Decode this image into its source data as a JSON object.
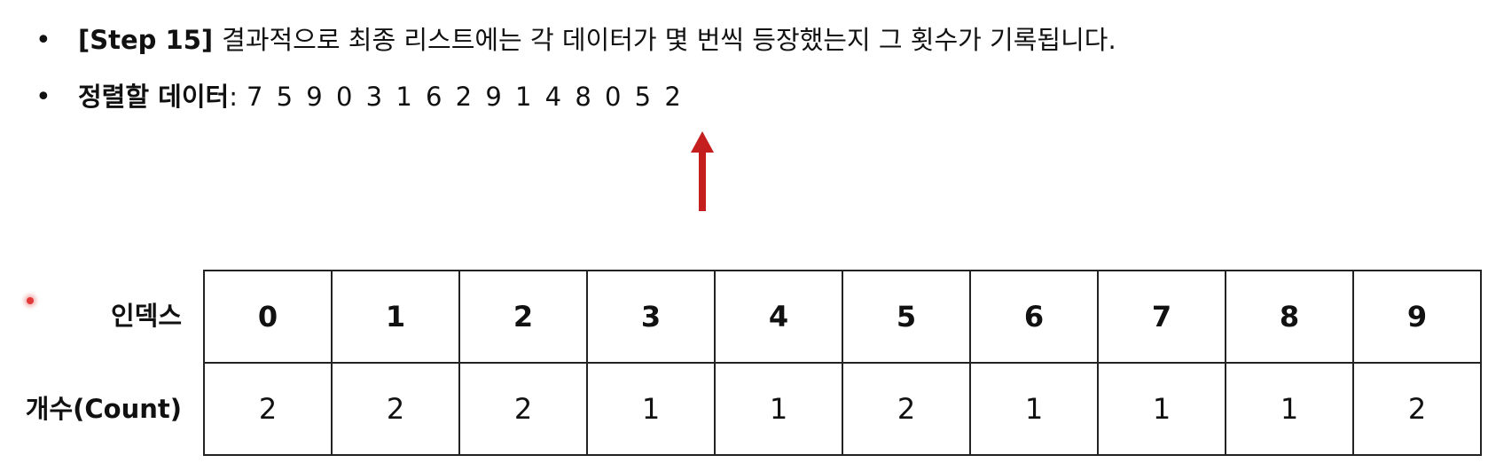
{
  "bullets": [
    {
      "bold": "[Step 15]",
      "text": "결과적으로 최종 리스트에는 각 데이터가 몇 번씩 등장했는지 그 횟수가 기록됩니다."
    },
    {
      "bold": "정렬할 데이터",
      "separator": ":",
      "text": "7 5 9 0 3 1 6 2 9 1 4 8 0 5 2"
    }
  ],
  "bullet_symbol": "•",
  "arrow_color": "#c41e1e",
  "table": {
    "row_labels": {
      "index": "인덱스",
      "count": "개수(Count)"
    },
    "index": [
      "0",
      "1",
      "2",
      "3",
      "4",
      "5",
      "6",
      "7",
      "8",
      "9"
    ],
    "count": [
      "2",
      "2",
      "2",
      "1",
      "1",
      "2",
      "1",
      "1",
      "1",
      "2"
    ]
  }
}
